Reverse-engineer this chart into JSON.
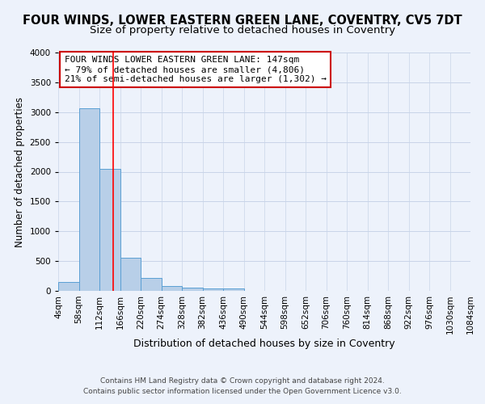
{
  "title": "FOUR WINDS, LOWER EASTERN GREEN LANE, COVENTRY, CV5 7DT",
  "subtitle": "Size of property relative to detached houses in Coventry",
  "xlabel": "Distribution of detached houses by size in Coventry",
  "ylabel": "Number of detached properties",
  "bin_edges": [
    4,
    58,
    112,
    166,
    220,
    274,
    328,
    382,
    436,
    490,
    544,
    598,
    652,
    706,
    760,
    814,
    868,
    922,
    976,
    1030,
    1084
  ],
  "bar_heights": [
    150,
    3060,
    2050,
    560,
    220,
    75,
    55,
    45,
    45,
    0,
    0,
    0,
    0,
    0,
    0,
    0,
    0,
    0,
    0,
    0
  ],
  "bar_color": "#b8cfe8",
  "bar_edge_color": "#5a9fd4",
  "grid_color": "#c8d4e8",
  "background_color": "#edf2fb",
  "red_line_x": 147,
  "annotation_text": "FOUR WINDS LOWER EASTERN GREEN LANE: 147sqm\n← 79% of detached houses are smaller (4,806)\n21% of semi-detached houses are larger (1,302) →",
  "annotation_box_color": "#ffffff",
  "annotation_box_edge": "#cc0000",
  "footnote1": "Contains HM Land Registry data © Crown copyright and database right 2024.",
  "footnote2": "Contains public sector information licensed under the Open Government Licence v3.0.",
  "ylim": [
    0,
    4000
  ],
  "yticks": [
    0,
    500,
    1000,
    1500,
    2000,
    2500,
    3000,
    3500,
    4000
  ],
  "title_fontsize": 10.5,
  "subtitle_fontsize": 9.5,
  "xlabel_fontsize": 9,
  "ylabel_fontsize": 8.5,
  "tick_fontsize": 7.5,
  "annotation_fontsize": 8,
  "footnote_fontsize": 6.5
}
